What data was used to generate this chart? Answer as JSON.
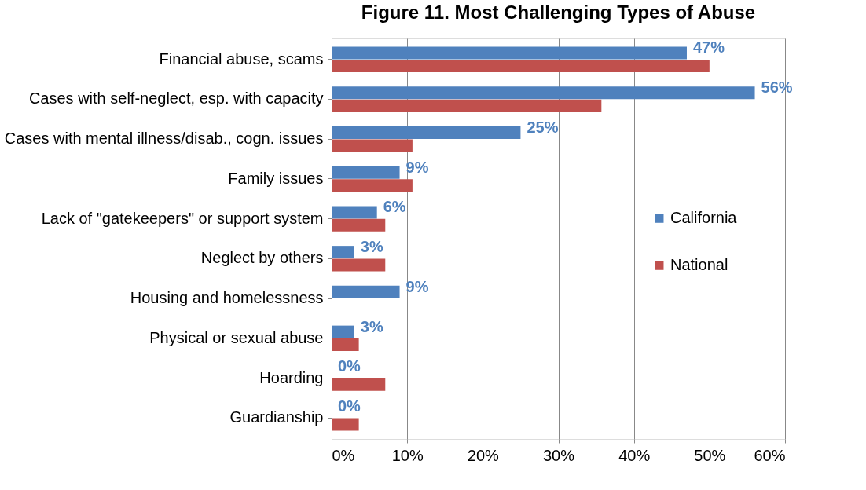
{
  "chart_data": {
    "type": "bar",
    "orientation": "horizontal",
    "title": "Figure 11. Most Challenging Types of Abuse",
    "categories": [
      "Financial abuse, scams",
      "Cases with self-neglect, esp. with capacity",
      "Cases with mental illness/disab., cogn. issues",
      "Family issues",
      "Lack of \"gatekeepers\" or support system",
      "Neglect by others",
      "Housing and homelessness",
      "Physical or sexual abuse",
      "Hoarding",
      "Guardianship"
    ],
    "series": [
      {
        "name": "California",
        "color": "#4f81bd",
        "values": [
          47,
          56,
          25,
          9,
          6,
          3,
          9,
          3,
          0,
          0
        ],
        "value_labels": [
          "47%",
          "56%",
          "25%",
          "9%",
          "6%",
          "3%",
          "9%",
          "3%",
          "0%",
          "0%"
        ]
      },
      {
        "name": "National",
        "color": "#c0504d",
        "values": [
          50,
          35.7,
          10.7,
          10.7,
          7.1,
          7.1,
          0,
          3.6,
          7.1,
          3.6
        ]
      }
    ],
    "xlim": [
      0,
      60
    ],
    "xticks": [
      {
        "value": 0,
        "label": "0%"
      },
      {
        "value": 10,
        "label": "10%"
      },
      {
        "value": 20,
        "label": "20%"
      },
      {
        "value": 30,
        "label": "30%"
      },
      {
        "value": 40,
        "label": "40%"
      },
      {
        "value": 50,
        "label": "50%"
      },
      {
        "value": 60,
        "label": "60%"
      }
    ],
    "grid": "x",
    "legend": "right"
  }
}
